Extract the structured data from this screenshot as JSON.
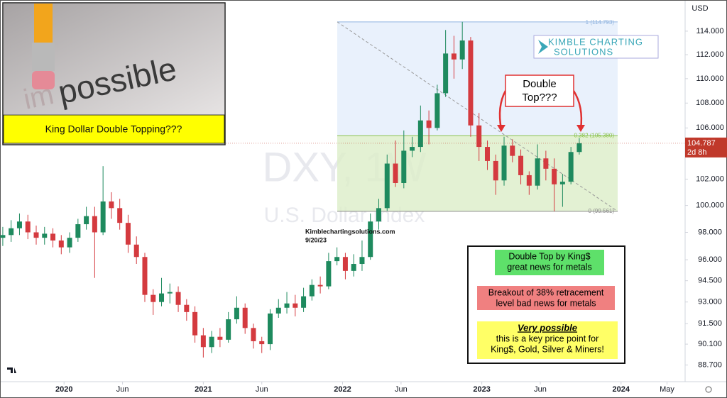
{
  "chart_data": {
    "type": "candlestick",
    "title": "DXY, 1W",
    "subtitle": "U.S. Dollar Index",
    "currency": "USD",
    "x": [
      2019.56,
      2019.62,
      2019.68,
      2019.74,
      2019.8,
      2019.86,
      2019.92,
      2019.98,
      2020.04,
      2020.1,
      2020.16,
      2020.22,
      2020.28,
      2020.34,
      2020.4,
      2020.46,
      2020.52,
      2020.58,
      2020.64,
      2020.7,
      2020.76,
      2020.82,
      2020.88,
      2020.94,
      2021.0,
      2021.06,
      2021.12,
      2021.18,
      2021.24,
      2021.3,
      2021.36,
      2021.42,
      2021.48,
      2021.54,
      2021.6,
      2021.66,
      2021.72,
      2021.78,
      2021.84,
      2021.9,
      2021.96,
      2022.02,
      2022.08,
      2022.14,
      2022.2,
      2022.26,
      2022.32,
      2022.38,
      2022.44,
      2022.5,
      2022.56,
      2022.62,
      2022.68,
      2022.74,
      2022.8,
      2022.86,
      2022.92,
      2022.98,
      2023.04,
      2023.1,
      2023.16,
      2023.22,
      2023.28,
      2023.34,
      2023.4,
      2023.46,
      2023.52,
      2023.58,
      2023.64,
      2023.7
    ],
    "open": [
      97.6,
      97.8,
      98.3,
      98.8,
      98.0,
      97.6,
      97.9,
      97.4,
      96.9,
      97.6,
      98.6,
      99.2,
      98.0,
      100.3,
      99.8,
      98.7,
      97.1,
      96.2,
      93.5,
      93.0,
      93.6,
      93.7,
      92.8,
      92.3,
      90.7,
      89.9,
      90.6,
      90.4,
      91.8,
      92.6,
      91.2,
      90.3,
      90.1,
      92.2,
      92.6,
      92.9,
      92.6,
      93.4,
      94.2,
      94.1,
      95.9,
      96.2,
      95.2,
      95.7,
      96.2,
      98.8,
      99.8,
      103.2,
      101.7,
      104.2,
      104.5,
      106.6,
      106.0,
      108.8,
      112.1,
      111.6,
      113.2,
      106.2,
      104.5,
      103.4,
      101.9,
      104.6,
      103.8,
      102.3,
      101.5,
      103.6,
      102.8,
      101.6,
      101.8,
      104.1
    ],
    "high": [
      98.4,
      98.9,
      99.4,
      99.3,
      98.5,
      98.4,
      98.3,
      97.8,
      98.0,
      99.0,
      99.9,
      99.9,
      103.0,
      101.0,
      100.5,
      99.3,
      97.7,
      96.5,
      93.9,
      94.7,
      94.3,
      94.1,
      93.2,
      92.7,
      91.2,
      91.0,
      91.2,
      92.3,
      93.4,
      92.9,
      91.5,
      90.6,
      92.5,
      93.2,
      93.7,
      93.5,
      94.0,
      94.6,
      94.8,
      96.5,
      96.9,
      96.5,
      96.4,
      97.4,
      99.4,
      100.5,
      103.9,
      105.0,
      105.8,
      105.3,
      107.8,
      107.4,
      109.5,
      114.1,
      113.6,
      114.8,
      113.5,
      107.2,
      105.0,
      103.9,
      105.3,
      105.1,
      104.3,
      102.6,
      104.7,
      104.2,
      103.6,
      102.4,
      104.5,
      105.2
    ],
    "low": [
      97.0,
      97.3,
      97.8,
      97.5,
      97.1,
      97.1,
      96.9,
      96.4,
      96.5,
      97.3,
      98.2,
      94.7,
      97.8,
      99.0,
      98.2,
      96.5,
      95.7,
      93.0,
      92.1,
      92.7,
      92.9,
      92.3,
      91.7,
      90.2,
      89.2,
      89.5,
      89.9,
      90.2,
      91.5,
      90.8,
      89.8,
      89.5,
      89.7,
      91.9,
      92.2,
      92.0,
      92.3,
      93.1,
      93.6,
      93.9,
      95.6,
      94.6,
      94.8,
      95.2,
      96.0,
      98.2,
      99.6,
      101.4,
      101.3,
      103.7,
      104.1,
      104.7,
      105.8,
      108.5,
      110.0,
      110.8,
      105.3,
      103.4,
      102.7,
      100.8,
      101.5,
      103.3,
      101.6,
      100.8,
      101.2,
      101.9,
      99.56,
      99.9,
      101.6,
      103.9
    ],
    "close": [
      97.8,
      98.3,
      98.8,
      98.0,
      97.6,
      97.9,
      97.4,
      96.9,
      97.6,
      98.6,
      99.2,
      98.0,
      100.3,
      99.8,
      98.7,
      97.1,
      96.2,
      93.5,
      93.0,
      93.6,
      93.7,
      92.8,
      92.3,
      90.7,
      89.9,
      90.6,
      90.4,
      91.8,
      92.6,
      91.2,
      90.3,
      90.1,
      92.2,
      92.6,
      92.9,
      92.6,
      93.4,
      94.2,
      94.1,
      95.9,
      96.2,
      95.2,
      95.7,
      96.2,
      98.8,
      99.8,
      103.2,
      101.7,
      104.2,
      104.5,
      106.6,
      106.0,
      108.8,
      112.1,
      111.6,
      113.2,
      106.2,
      104.5,
      103.4,
      101.9,
      104.6,
      103.8,
      102.3,
      101.5,
      103.6,
      102.8,
      101.6,
      101.8,
      104.1,
      104.79
    ],
    "up_color": "#1e8a5e",
    "down_color": "#d43a3f",
    "xlim": [
      2019.54,
      2024.46
    ],
    "xticks": [
      2020,
      {
        "value": 2020.42,
        "label": "Jun"
      },
      2021,
      {
        "value": 2021.42,
        "label": "Jun"
      },
      2022,
      {
        "value": 2022.42,
        "label": "Jun"
      },
      2023,
      {
        "value": 2023.42,
        "label": "Jun"
      },
      2024,
      {
        "value": 2024.33,
        "label": "May"
      }
    ],
    "ylim": [
      87.5,
      116.7
    ],
    "log_scale": true,
    "yticks": [
      {
        "value": 88.7,
        "label": "88.700"
      },
      {
        "value": 90.1,
        "label": "90.100"
      },
      {
        "value": 91.5,
        "label": "91.500"
      },
      {
        "value": 93,
        "label": "93.000"
      },
      {
        "value": 94.5,
        "label": "94.500"
      },
      {
        "value": 96,
        "label": "96.000"
      },
      {
        "value": 98,
        "label": "98.000"
      },
      {
        "value": 100,
        "label": "100.000"
      },
      {
        "value": 102,
        "label": "102.000"
      },
      {
        "value": 106,
        "label": "106.000"
      },
      {
        "value": 108,
        "label": "108.000"
      },
      {
        "value": 110,
        "label": "110.000"
      },
      {
        "value": 112,
        "label": "112.000"
      },
      {
        "value": 114,
        "label": "114.000"
      }
    ],
    "last_price": 104.787,
    "last_price_color": "#c0392b",
    "countdown": "2d 8h",
    "fib_levels": [
      {
        "value": 114.793,
        "label": "1 (114.793)"
      },
      {
        "value": 105.38,
        "label": "0.382 (105.380)"
      },
      {
        "value": 99.561,
        "label": "0 (99.561)"
      }
    ]
  },
  "annotations": {
    "photo_faded": "im",
    "photo_word": "possible",
    "banner": "King Dollar Double Topping???",
    "logo": [
      "KIMBLE CHARTING",
      "SOLUTIONS"
    ],
    "site": "Kimblechartingsolutions.com",
    "date": "9/20/23",
    "callout": [
      "Double",
      "Top???"
    ],
    "notes": [
      {
        "lines": [
          "Double Top by King$",
          "great news for metals"
        ],
        "color": "#5ee06a"
      },
      {
        "lines": [
          "Breakout of 38% retracement",
          "level bad news for metals"
        ],
        "color": "#f08080"
      },
      {
        "heading": "Very possible",
        "lines": [
          "this is a key price point for",
          "King$, Gold, Silver & Miners!"
        ],
        "color": "#ffff66"
      }
    ]
  }
}
